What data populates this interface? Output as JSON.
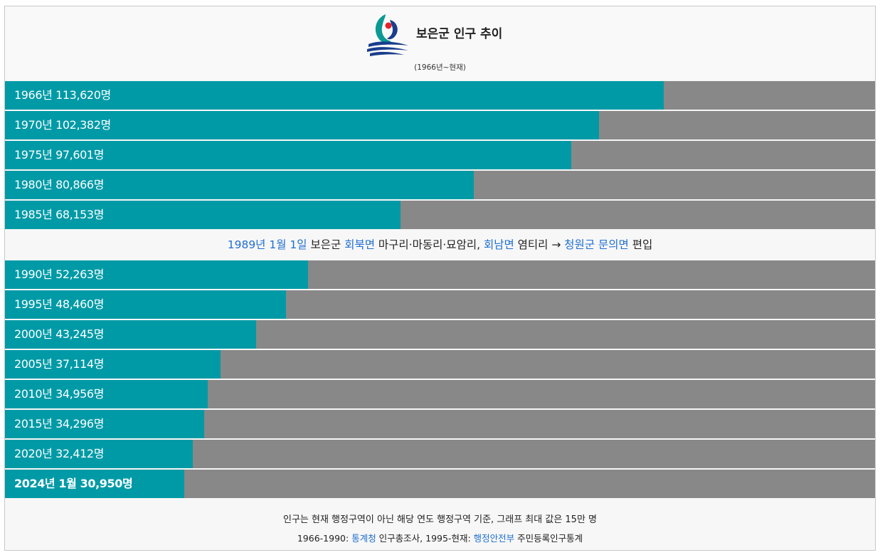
{
  "header": {
    "title": "보은군 인구 추이",
    "subtitle": "(1966년~현재)"
  },
  "colors": {
    "bar": "#009aa6",
    "track": "#888888",
    "link": "#1f6fd1"
  },
  "chart_data": {
    "type": "bar",
    "orientation": "horizontal",
    "xlim": [
      0,
      150000
    ],
    "categories": [
      "1966년",
      "1970년",
      "1975년",
      "1980년",
      "1985년",
      "1990년",
      "1995년",
      "2000년",
      "2005년",
      "2010년",
      "2015년",
      "2020년",
      "2024년 1월"
    ],
    "values": [
      113620,
      102382,
      97601,
      80866,
      68153,
      52263,
      48460,
      43245,
      37114,
      34956,
      34296,
      32412,
      30950
    ],
    "labels": [
      "1966년 113,620명",
      "1970년 102,382명",
      "1975년 97,601명",
      "1980년 80,866명",
      "1985년 68,153명",
      "1990년 52,263명",
      "1995년 48,460명",
      "2000년 43,245명",
      "2005년 37,114명",
      "2010년 34,956명",
      "2015년 34,296명",
      "2020년 32,412명",
      "2024년 1월 30,950명"
    ]
  },
  "note": {
    "date": "1989년 1월 1일",
    "t1": " 보은군 ",
    "area1": "회북면",
    "t2": " 마구리·마동리·묘암리, ",
    "area2": "회남면",
    "t3": " 염티리 → ",
    "dest1": "청원군",
    "t4": " ",
    "dest2": "문의면",
    "t5": " 편입"
  },
  "footer": {
    "line1": "인구는 현재 행정구역이 아닌 해당 연도 행정구역 기준, 그래프 최대 값은 15만 명",
    "l2a": "1966-1990: ",
    "l2b": "통계청",
    "l2c": " 인구총조사, 1995-현재: ",
    "l2d": "행정안전부",
    "l2e": " 주민등록인구통계"
  }
}
